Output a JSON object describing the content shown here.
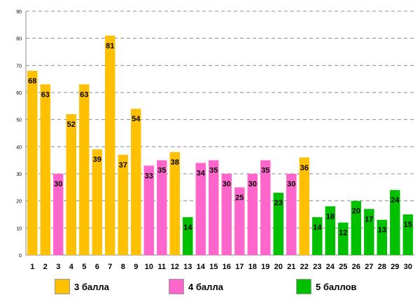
{
  "chart_data": {
    "type": "bar",
    "title": "",
    "xlabel": "",
    "ylabel": "",
    "ylim": [
      0,
      90
    ],
    "yticks": [
      0,
      10,
      20,
      30,
      40,
      50,
      60,
      70,
      80,
      90
    ],
    "grid": true,
    "categories": [
      "1",
      "2",
      "3",
      "4",
      "5",
      "6",
      "7",
      "8",
      "9",
      "10",
      "11",
      "12",
      "13",
      "14",
      "15",
      "16",
      "17",
      "18",
      "19",
      "20",
      "21",
      "22",
      "23",
      "24",
      "25",
      "26",
      "27",
      "28",
      "29",
      "30"
    ],
    "values": [
      68,
      63,
      30,
      52,
      63,
      39,
      81,
      37,
      54,
      33,
      35,
      38,
      14,
      34,
      35,
      30,
      25,
      30,
      35,
      23,
      30,
      36,
      14,
      18,
      12,
      20,
      17,
      13,
      24,
      15
    ],
    "groups": [
      "3 балла",
      "3 балла",
      "4 балла",
      "3 балла",
      "3 балла",
      "3 балла",
      "3 балла",
      "3 балла",
      "3 балла",
      "4 балла",
      "4 балла",
      "3 балла",
      "5 баллов",
      "4 балла",
      "4 балла",
      "4 балла",
      "4 балла",
      "4 балла",
      "4 балла",
      "5 баллов",
      "4 балла",
      "3 балла",
      "5 баллов",
      "5 баллов",
      "5 баллов",
      "5 баллов",
      "5 баллов",
      "5 баллов",
      "5 баллов",
      "5 баллов"
    ],
    "legend": [
      {
        "name": "3 балла",
        "color": "#FFC000"
      },
      {
        "name": "4 балла",
        "color": "#FF66CC"
      },
      {
        "name": "5 баллов",
        "color": "#00C000"
      }
    ],
    "legend_position": "bottom"
  }
}
